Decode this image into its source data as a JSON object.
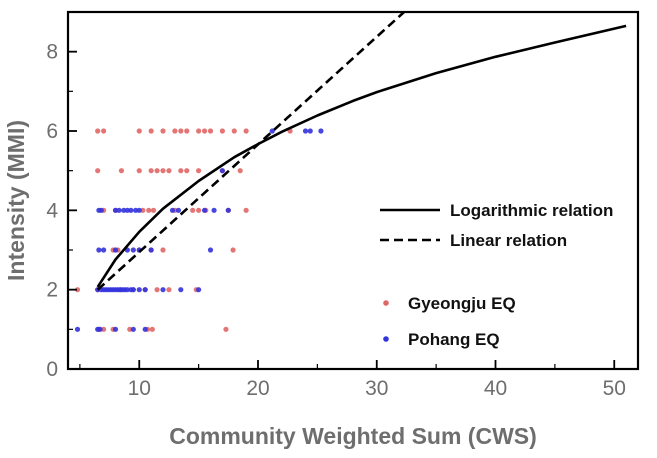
{
  "chart_data": {
    "type": "scatter",
    "title": "",
    "xlabel": "Community Weighted Sum (CWS)",
    "ylabel": "Intensity (MMI)",
    "xlim": [
      4,
      52
    ],
    "ylim": [
      0,
      9
    ],
    "xticks": [
      10,
      20,
      30,
      40,
      50
    ],
    "yticks": [
      0,
      2,
      4,
      6,
      8
    ],
    "grid": false,
    "legend_position": "right",
    "colors": {
      "gyeongju": "#e06666",
      "pohang": "#3333dd",
      "curve": "#000000"
    },
    "series": [
      {
        "name": "Gyeongju EQ",
        "kind": "scatter",
        "points": [
          [
            6.5,
            6
          ],
          [
            7,
            6
          ],
          [
            10,
            6
          ],
          [
            11,
            6
          ],
          [
            12,
            6
          ],
          [
            13,
            6
          ],
          [
            13.5,
            6
          ],
          [
            14,
            6
          ],
          [
            15,
            6
          ],
          [
            15.5,
            6
          ],
          [
            16,
            6
          ],
          [
            17,
            6
          ],
          [
            18,
            6
          ],
          [
            19,
            6
          ],
          [
            22.7,
            6
          ],
          [
            6.5,
            5
          ],
          [
            8.5,
            5
          ],
          [
            10,
            5
          ],
          [
            11,
            5
          ],
          [
            11.5,
            5
          ],
          [
            12,
            5
          ],
          [
            12.5,
            5
          ],
          [
            13.5,
            5
          ],
          [
            14,
            5
          ],
          [
            15,
            5
          ],
          [
            17,
            5
          ],
          [
            18.5,
            5
          ],
          [
            7,
            4
          ],
          [
            8,
            4
          ],
          [
            10.3,
            4
          ],
          [
            10.8,
            4
          ],
          [
            11.2,
            4
          ],
          [
            13,
            4
          ],
          [
            14.5,
            4
          ],
          [
            15,
            4
          ],
          [
            15.6,
            4
          ],
          [
            17.5,
            4
          ],
          [
            19,
            4
          ],
          [
            7.8,
            3
          ],
          [
            8.2,
            3
          ],
          [
            10,
            3
          ],
          [
            11,
            3
          ],
          [
            12,
            3
          ],
          [
            17.9,
            3
          ],
          [
            4.8,
            2
          ],
          [
            6.5,
            2
          ],
          [
            8.4,
            2
          ],
          [
            9.5,
            2
          ],
          [
            10.5,
            2
          ],
          [
            11.5,
            2
          ],
          [
            12.5,
            2
          ],
          [
            14.8,
            2
          ],
          [
            6.6,
            1
          ],
          [
            7,
            1
          ],
          [
            7.8,
            1
          ],
          [
            9.2,
            1
          ],
          [
            10.7,
            1
          ],
          [
            11.1,
            1
          ],
          [
            17.3,
            1
          ]
        ]
      },
      {
        "name": "Pohang EQ",
        "kind": "scatter",
        "points": [
          [
            21.2,
            6
          ],
          [
            24,
            6
          ],
          [
            24.4,
            6
          ],
          [
            25.3,
            6
          ],
          [
            17,
            5
          ],
          [
            6.6,
            4
          ],
          [
            6.8,
            4
          ],
          [
            8,
            4
          ],
          [
            8.3,
            4
          ],
          [
            8.7,
            4
          ],
          [
            9,
            4
          ],
          [
            9.3,
            4
          ],
          [
            9.7,
            4
          ],
          [
            10,
            4
          ],
          [
            12.8,
            4
          ],
          [
            13.3,
            4
          ],
          [
            15.5,
            4
          ],
          [
            16.3,
            4
          ],
          [
            17.5,
            4
          ],
          [
            6.6,
            3
          ],
          [
            7,
            3
          ],
          [
            8,
            3
          ],
          [
            9,
            3
          ],
          [
            9.5,
            3
          ],
          [
            10,
            3
          ],
          [
            11,
            3
          ],
          [
            16,
            3
          ],
          [
            6.5,
            2
          ],
          [
            6.8,
            2
          ],
          [
            7,
            2
          ],
          [
            7.2,
            2
          ],
          [
            7.4,
            2
          ],
          [
            7.6,
            2
          ],
          [
            7.8,
            2
          ],
          [
            8,
            2
          ],
          [
            8.2,
            2
          ],
          [
            8.4,
            2
          ],
          [
            8.6,
            2
          ],
          [
            8.8,
            2
          ],
          [
            9,
            2
          ],
          [
            9.3,
            2
          ],
          [
            9.5,
            2
          ],
          [
            10,
            2
          ],
          [
            10.5,
            2
          ],
          [
            12,
            2
          ],
          [
            13.5,
            2
          ],
          [
            15,
            2
          ],
          [
            4.8,
            1
          ],
          [
            6.5,
            1
          ],
          [
            6.7,
            1
          ],
          [
            8,
            1
          ],
          [
            9.5,
            1
          ],
          [
            10.5,
            1
          ]
        ]
      },
      {
        "name": "Logarithmic relation",
        "kind": "line",
        "dash": "solid",
        "x": [
          6.5,
          8,
          10,
          12,
          15,
          18,
          20,
          22,
          25,
          28,
          30,
          35,
          40,
          45,
          51
        ],
        "y": [
          2.07,
          2.76,
          3.46,
          4.04,
          4.74,
          5.34,
          5.67,
          5.98,
          6.39,
          6.76,
          6.98,
          7.46,
          7.87,
          8.23,
          8.65
        ]
      },
      {
        "name": "Linear relation",
        "kind": "line",
        "dash": "dashed",
        "x": [
          6.5,
          32.3
        ],
        "y": [
          2.0,
          9.0
        ]
      }
    ]
  }
}
